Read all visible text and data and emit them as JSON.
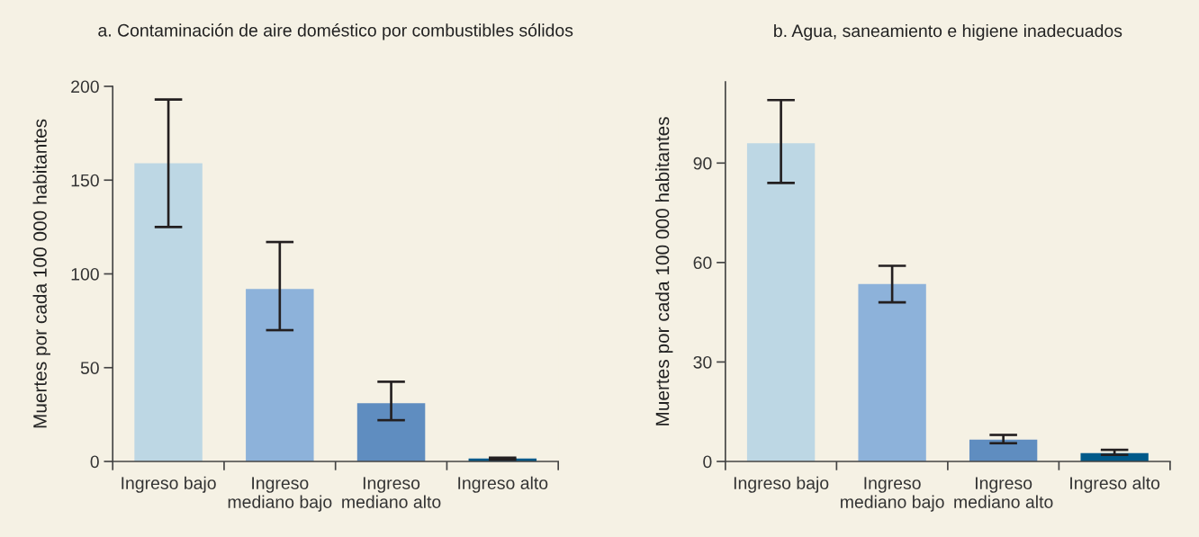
{
  "chart_data": [
    {
      "type": "bar",
      "title": "a. Contaminación de aire doméstico por combustibles sólidos",
      "ylabel": "Muertes por cada 100 000 habitantes",
      "categories": [
        "Ingreso bajo",
        "Ingreso\nmediano bajo",
        "Ingreso\nmediano alto",
        "Ingreso alto"
      ],
      "values": [
        159,
        92,
        31,
        1.5
      ],
      "colors": [
        "#bdd7e4",
        "#8db2da",
        "#5f8dc0",
        "#005a8a"
      ],
      "errors": [
        [
          125,
          193
        ],
        [
          70,
          117
        ],
        [
          22,
          42.5
        ],
        [
          1,
          2
        ]
      ],
      "ylim": [
        0,
        200
      ],
      "yticks": [
        0,
        50,
        100,
        150,
        200
      ]
    },
    {
      "type": "bar",
      "title": "b. Agua, saneamiento e higiene inadecuados",
      "ylabel": "Muertes por cada 100 000 habitantes",
      "categories": [
        "Ingreso bajo",
        "Ingreso\nmediano bajo",
        "Ingreso\nmediano alto",
        "Ingreso alto"
      ],
      "values": [
        96,
        53.5,
        6.6,
        2.5
      ],
      "colors": [
        "#bdd7e4",
        "#8db2da",
        "#5f8dc0",
        "#005a8a"
      ],
      "errors": [
        [
          84,
          109
        ],
        [
          48,
          59
        ],
        [
          5.5,
          8
        ],
        [
          2,
          3.5
        ]
      ],
      "ylim": [
        0,
        114.5
      ],
      "yticks": [
        0,
        30,
        60,
        90
      ]
    }
  ]
}
